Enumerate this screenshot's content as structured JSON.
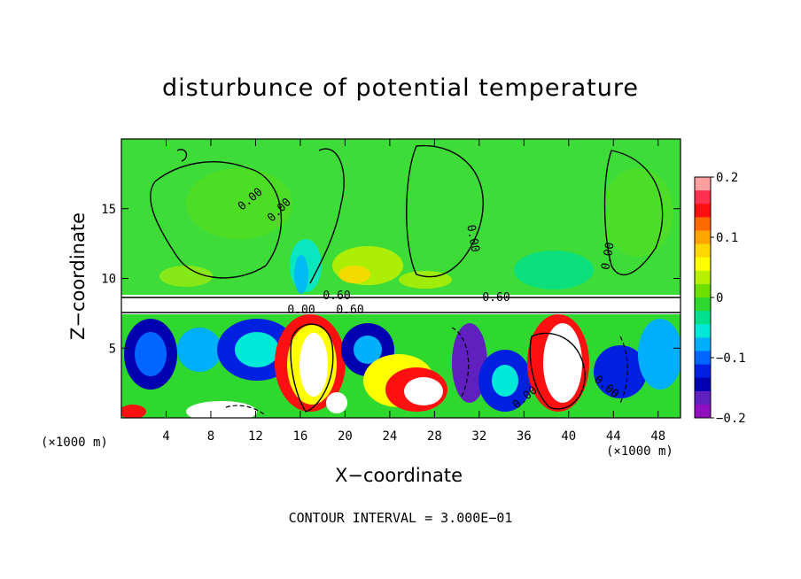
{
  "chart_data": {
    "type": "heatmap",
    "title": "disturbunce of potential temperature",
    "xlabel": "X−coordinate",
    "ylabel": "Z−coordinate",
    "x_unit": "(×1000 m)",
    "x_unit_right": "(×1000 m)",
    "footer": "CONTOUR INTERVAL = 3.000E−01",
    "xlim": [
      0,
      50
    ],
    "ylim": [
      0,
      20
    ],
    "x_ticks": [
      4,
      8,
      12,
      16,
      20,
      24,
      28,
      32,
      36,
      40,
      44,
      48
    ],
    "y_ticks": [
      5,
      10,
      15
    ],
    "colorbar": {
      "range": [
        -0.2,
        0.2
      ],
      "tick_values": [
        0.2,
        0.1,
        0,
        -0.1,
        -0.2
      ],
      "tick_labels": [
        "0.2",
        "0.1",
        "0",
        "−0.1",
        "−0.2"
      ],
      "colors": [
        "#ff9f9f",
        "#ff3050",
        "#ff1010",
        "#ff6a00",
        "#ffa500",
        "#ffd700",
        "#ffff00",
        "#b8f000",
        "#6ee000",
        "#2ed82e",
        "#00e08c",
        "#00e8d8",
        "#00b0ff",
        "#0066ff",
        "#0020e0",
        "#0000b0",
        "#6020c0",
        "#9010c0"
      ]
    },
    "contour_labels": [
      "0.00",
      "0.00",
      "0.00",
      "0.00",
      "0.60",
      "0.60",
      "0.60",
      "0.00",
      "0.00",
      "0.00"
    ]
  }
}
